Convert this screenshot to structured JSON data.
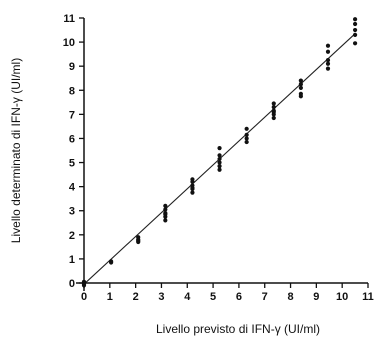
{
  "chart_data": {
    "type": "scatter",
    "xlabel": "Livello previsto di IFN-γ (UI/ml)",
    "ylabel": "Livello determinato di IFN-γ (UI/ml)",
    "xlim": [
      0,
      11
    ],
    "ylim": [
      0,
      11
    ],
    "x_ticks": [
      0,
      1,
      2,
      3,
      4,
      5,
      6,
      7,
      8,
      9,
      10,
      11
    ],
    "y_ticks": [
      0,
      1,
      2,
      3,
      4,
      5,
      6,
      7,
      8,
      9,
      10,
      11
    ],
    "grid": false,
    "fit_line": {
      "x": [
        0,
        10.5
      ],
      "y": [
        -0.05,
        10.35
      ]
    },
    "series": [
      {
        "points": [
          [
            0,
            0.0
          ],
          [
            0,
            -0.05
          ],
          [
            0,
            0.05
          ],
          [
            0,
            -0.1
          ],
          [
            1.05,
            0.85
          ],
          [
            1.05,
            0.9
          ],
          [
            2.1,
            1.7
          ],
          [
            2.1,
            1.8
          ],
          [
            2.1,
            1.9
          ],
          [
            2.1,
            1.75
          ],
          [
            3.15,
            2.6
          ],
          [
            3.15,
            2.75
          ],
          [
            3.15,
            2.9
          ],
          [
            3.15,
            3.05
          ],
          [
            3.15,
            3.2
          ],
          [
            3.15,
            2.85
          ],
          [
            4.2,
            3.75
          ],
          [
            4.2,
            3.9
          ],
          [
            4.2,
            4.05
          ],
          [
            4.2,
            4.2
          ],
          [
            4.2,
            4.3
          ],
          [
            4.2,
            3.95
          ],
          [
            5.25,
            4.7
          ],
          [
            5.25,
            4.85
          ],
          [
            5.25,
            5.0
          ],
          [
            5.25,
            5.15
          ],
          [
            5.25,
            5.3
          ],
          [
            5.25,
            5.6
          ],
          [
            6.3,
            5.85
          ],
          [
            6.3,
            6.0
          ],
          [
            6.3,
            6.15
          ],
          [
            6.3,
            6.4
          ],
          [
            7.35,
            6.85
          ],
          [
            7.35,
            7.0
          ],
          [
            7.35,
            7.15
          ],
          [
            7.35,
            7.3
          ],
          [
            7.35,
            7.45
          ],
          [
            7.35,
            7.1
          ],
          [
            8.4,
            7.75
          ],
          [
            8.4,
            7.85
          ],
          [
            8.4,
            8.1
          ],
          [
            8.4,
            8.25
          ],
          [
            8.4,
            8.4
          ],
          [
            9.45,
            8.9
          ],
          [
            9.45,
            9.1
          ],
          [
            9.45,
            9.25
          ],
          [
            9.45,
            9.6
          ],
          [
            9.45,
            9.85
          ],
          [
            10.5,
            9.95
          ],
          [
            10.5,
            10.3
          ],
          [
            10.5,
            10.5
          ],
          [
            10.5,
            10.75
          ],
          [
            10.5,
            10.95
          ]
        ]
      }
    ]
  }
}
